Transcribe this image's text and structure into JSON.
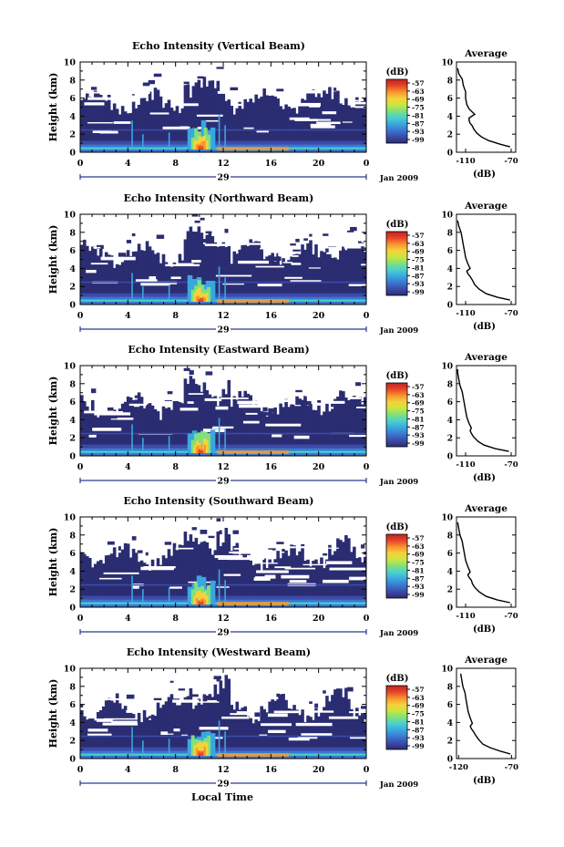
{
  "figure": {
    "footer_label": "Local Time",
    "month_label": "Jan 2009",
    "colorbar_unit": "(dB)",
    "colorbar_ticks": [
      "-57",
      "-63",
      "-69",
      "-75",
      "-81",
      "-87",
      "-93",
      "-99"
    ],
    "colormap": [
      "#2b2d72",
      "#3c4aa8",
      "#3a78d0",
      "#3aa6e0",
      "#49d0d0",
      "#7ee07e",
      "#c8e640",
      "#f6d23a",
      "#f7962e",
      "#e8442a",
      "#c0231f"
    ]
  },
  "chart_data": [
    {
      "type": "heatmap",
      "title": "Echo Intensity (Vertical Beam)",
      "ylabel": "Height (km)",
      "xticks": [
        "0",
        "4",
        "8",
        "12",
        "16",
        "20",
        "0"
      ],
      "yticks": [
        "0",
        "2",
        "4",
        "6",
        "8",
        "10"
      ],
      "xlim": [
        0,
        24
      ],
      "ylim": [
        0,
        10
      ],
      "day_label": "29",
      "colorbar": {
        "label": "(dB)",
        "range": [
          -99,
          -57
        ]
      },
      "profile": {
        "title": "Average",
        "xlabel": "(dB)",
        "xticks": [
          "-110",
          "-70"
        ],
        "xlim": [
          -118,
          -66
        ],
        "ylim": [
          0,
          10
        ],
        "x": [
          -71,
          -80,
          -90,
          -96,
          -100,
          -103,
          -104,
          -106,
          -107,
          -107,
          -102,
          -107,
          -109,
          -110,
          -110,
          -112,
          -113,
          -116,
          -117
        ],
        "y": [
          0.6,
          0.9,
          1.3,
          1.7,
          2.1,
          2.6,
          2.9,
          3.2,
          3.5,
          3.8,
          4.2,
          4.8,
          5.3,
          6.0,
          6.7,
          7.4,
          8.1,
          8.7,
          9.3
        ]
      }
    },
    {
      "type": "heatmap",
      "title": "Echo Intensity (Northward Beam)",
      "ylabel": "Height (km)",
      "xticks": [
        "0",
        "4",
        "8",
        "12",
        "16",
        "20",
        "0"
      ],
      "yticks": [
        "0",
        "2",
        "4",
        "6",
        "8",
        "10"
      ],
      "xlim": [
        0,
        24
      ],
      "ylim": [
        0,
        10
      ],
      "day_label": "29",
      "colorbar": {
        "label": "(dB)",
        "range": [
          -99,
          -57
        ]
      },
      "profile": {
        "title": "Average",
        "xlabel": "(dB)",
        "xticks": [
          "-110",
          "-70"
        ],
        "xlim": [
          -118,
          -66
        ],
        "ylim": [
          0,
          10
        ],
        "x": [
          -71,
          -82,
          -92,
          -98,
          -102,
          -104,
          -106,
          -108,
          -109,
          -106,
          -108,
          -110,
          -111,
          -112,
          -113,
          -114,
          -116,
          -117
        ],
        "y": [
          0.5,
          0.8,
          1.2,
          1.7,
          2.2,
          2.7,
          3.1,
          3.4,
          3.7,
          4.0,
          4.5,
          5.2,
          5.9,
          6.6,
          7.3,
          8.0,
          8.7,
          9.3
        ]
      }
    },
    {
      "type": "heatmap",
      "title": "Echo Intensity (Eastward Beam)",
      "ylabel": "Height (km)",
      "xticks": [
        "0",
        "4",
        "8",
        "12",
        "16",
        "20",
        "0"
      ],
      "yticks": [
        "0",
        "2",
        "4",
        "6",
        "8",
        "10"
      ],
      "xlim": [
        0,
        24
      ],
      "ylim": [
        0,
        10
      ],
      "day_label": "29",
      "colorbar": {
        "label": "(dB)",
        "range": [
          -99,
          -57
        ]
      },
      "profile": {
        "title": "Average",
        "xlabel": "(dB)",
        "xticks": [
          "-110",
          "-70"
        ],
        "xlim": [
          -118,
          -66
        ],
        "ylim": [
          0,
          10
        ],
        "x": [
          -72,
          -84,
          -94,
          -99,
          -103,
          -105,
          -106,
          -105,
          -107,
          -109,
          -110,
          -111,
          -112,
          -113,
          -115,
          -116,
          -117,
          -117
        ],
        "y": [
          0.5,
          0.8,
          1.2,
          1.6,
          2.1,
          2.5,
          2.8,
          3.1,
          3.6,
          4.3,
          5.0,
          5.7,
          6.4,
          7.1,
          7.8,
          8.5,
          9.2,
          9.6
        ]
      }
    },
    {
      "type": "heatmap",
      "title": "Echo Intensity (Southward Beam)",
      "ylabel": "Height (km)",
      "xticks": [
        "0",
        "4",
        "8",
        "12",
        "16",
        "20",
        "0"
      ],
      "yticks": [
        "0",
        "2",
        "4",
        "6",
        "8",
        "10"
      ],
      "xlim": [
        0,
        24
      ],
      "ylim": [
        0,
        10
      ],
      "day_label": "29",
      "colorbar": {
        "label": "(dB)",
        "range": [
          -99,
          -57
        ]
      },
      "profile": {
        "title": "Average",
        "xlabel": "(dB)",
        "xticks": [
          "-110",
          "-70"
        ],
        "xlim": [
          -118,
          -66
        ],
        "ylim": [
          0,
          10
        ],
        "x": [
          -71,
          -82,
          -92,
          -98,
          -102,
          -104,
          -105,
          -107,
          -108,
          -106,
          -108,
          -110,
          -111,
          -112,
          -113,
          -115,
          -116,
          -117
        ],
        "y": [
          0.5,
          0.8,
          1.2,
          1.7,
          2.2,
          2.6,
          3.0,
          3.3,
          3.6,
          3.9,
          4.5,
          5.2,
          5.9,
          6.6,
          7.3,
          8.0,
          8.7,
          9.4
        ]
      }
    },
    {
      "type": "heatmap",
      "title": "Echo Intensity (Westward Beam)",
      "ylabel": "Height (km)",
      "xticks": [
        "0",
        "4",
        "8",
        "12",
        "16",
        "20",
        "0"
      ],
      "yticks": [
        "0",
        "2",
        "4",
        "6",
        "8",
        "10"
      ],
      "xlim": [
        0,
        24
      ],
      "ylim": [
        0,
        10
      ],
      "day_label": "29",
      "colorbar": {
        "label": "(dB)",
        "range": [
          -99,
          -57
        ]
      },
      "profile": {
        "title": "Average",
        "xlabel": "(dB)",
        "xticks": [
          "-120",
          "-70"
        ],
        "xlim": [
          -122,
          -66
        ],
        "ylim": [
          0,
          10
        ],
        "x": [
          -71,
          -80,
          -90,
          -97,
          -101,
          -104,
          -106,
          -108,
          -109,
          -107,
          -109,
          -111,
          -112,
          -113,
          -114,
          -116,
          -117,
          -118
        ],
        "y": [
          0.5,
          0.8,
          1.2,
          1.6,
          2.1,
          2.6,
          3.0,
          3.3,
          3.6,
          3.9,
          4.5,
          5.2,
          5.9,
          6.6,
          7.3,
          8.0,
          8.7,
          9.4
        ]
      }
    }
  ]
}
